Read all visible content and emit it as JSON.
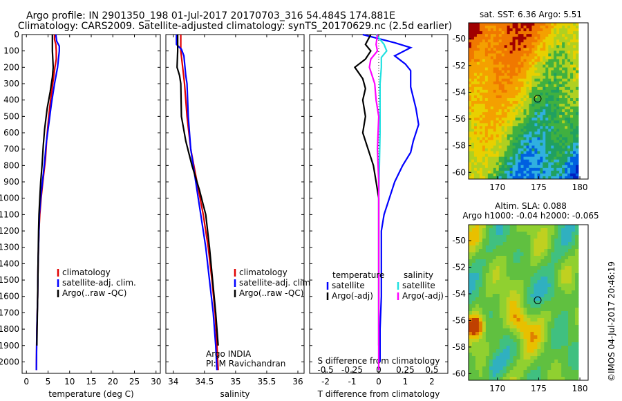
{
  "title_line1": "Argo profile: IN 2901350_198 01-Jul-2017 20170703_316 54.484S 174.881E",
  "title_line2": "Climatology: CARS2009. Satellite-adjusted climatology: synTS_20170629.nc (2.5d earlier)",
  "watermark": "©IMOS 04-Jul-2017 20:46:19",
  "colors": {
    "red": "#e00000",
    "blue": "#0000ff",
    "black": "#000000",
    "cyan": "#20e0e0",
    "magenta": "#ff00ff"
  },
  "chart_data": [
    {
      "type": "line",
      "xlabel": "temperature (deg C)",
      "ylabel": "",
      "xlim": [
        -1,
        31
      ],
      "ylim": [
        2070,
        0
      ],
      "xticks": [
        "0",
        "5",
        "10",
        "15",
        "20",
        "25",
        "30"
      ],
      "yticks": [
        "0",
        "100",
        "200",
        "300",
        "400",
        "500",
        "600",
        "700",
        "800",
        "900",
        "1000",
        "1100",
        "1200",
        "1300",
        "1400",
        "1500",
        "1600",
        "1700",
        "1800",
        "1900",
        "2000"
      ],
      "legend": [
        "climatology",
        "satellite-adj. clim.",
        "Argo(..raw -QC)"
      ],
      "legend_position": "lower-right",
      "series": [
        {
          "name": "climatology",
          "color": "red",
          "points": [
            [
              6.5,
              0
            ],
            [
              6.5,
              30
            ],
            [
              6.8,
              60
            ],
            [
              6.9,
              100
            ],
            [
              6.9,
              150
            ],
            [
              6.6,
              200
            ],
            [
              6.3,
              260
            ],
            [
              5.9,
              340
            ],
            [
              5.5,
              420
            ],
            [
              5.1,
              520
            ],
            [
              4.7,
              640
            ],
            [
              4.4,
              760
            ],
            [
              3.8,
              900
            ],
            [
              3.4,
              1000
            ],
            [
              3.1,
              1100
            ],
            [
              2.9,
              1200
            ],
            [
              2.7,
              1400
            ],
            [
              2.6,
              1600
            ],
            [
              2.4,
              1800
            ],
            [
              2.3,
              2050
            ]
          ]
        },
        {
          "name": "satellite-adj. clim.",
          "color": "blue",
          "points": [
            [
              6.8,
              0
            ],
            [
              7.0,
              40
            ],
            [
              7.6,
              70
            ],
            [
              7.6,
              100
            ],
            [
              7.2,
              200
            ],
            [
              6.5,
              300
            ],
            [
              5.8,
              420
            ],
            [
              5.2,
              540
            ],
            [
              4.6,
              660
            ],
            [
              4.2,
              780
            ],
            [
              3.7,
              900
            ],
            [
              3.3,
              1000
            ],
            [
              3.0,
              1100
            ],
            [
              2.9,
              1200
            ],
            [
              2.7,
              1400
            ],
            [
              2.6,
              1600
            ],
            [
              2.4,
              1800
            ],
            [
              2.3,
              2050
            ]
          ]
        },
        {
          "name": "Argo(..raw -QC)",
          "color": "black",
          "points": [
            [
              6.0,
              0
            ],
            [
              6.0,
              100
            ],
            [
              6.2,
              200
            ],
            [
              6.0,
              260
            ],
            [
              5.5,
              350
            ],
            [
              4.8,
              450
            ],
            [
              4.2,
              580
            ],
            [
              3.9,
              680
            ],
            [
              3.6,
              800
            ],
            [
              3.3,
              900
            ],
            [
              3.1,
              1000
            ],
            [
              2.9,
              1100
            ],
            [
              2.8,
              1200
            ],
            [
              2.7,
              1400
            ],
            [
              2.6,
              1600
            ],
            [
              2.5,
              1750
            ],
            [
              2.4,
              1900
            ]
          ]
        }
      ]
    },
    {
      "type": "line",
      "xlabel": "salinity",
      "ylabel": "",
      "xlim": [
        33.88,
        36.1
      ],
      "ylim": [
        2070,
        0
      ],
      "xticks": [
        "34",
        "34.5",
        "35",
        "35.5",
        "36"
      ],
      "legend": [
        "climatology",
        "satellite-adj. clim.",
        "Argo(..raw -QC)"
      ],
      "legend_position": "lower-right",
      "series": [
        {
          "name": "climatology",
          "color": "red",
          "points": [
            [
              34.12,
              0
            ],
            [
              34.12,
              100
            ],
            [
              34.15,
              200
            ],
            [
              34.18,
              300
            ],
            [
              34.22,
              500
            ],
            [
              34.28,
              700
            ],
            [
              34.38,
              900
            ],
            [
              34.48,
              1100
            ],
            [
              34.56,
              1300
            ],
            [
              34.62,
              1500
            ],
            [
              34.67,
              1700
            ],
            [
              34.7,
              1900
            ],
            [
              34.72,
              2050
            ]
          ]
        },
        {
          "name": "satellite-adj. clim.",
          "color": "blue",
          "points": [
            [
              34.05,
              0
            ],
            [
              34.05,
              60
            ],
            [
              34.13,
              90
            ],
            [
              34.17,
              130
            ],
            [
              34.2,
              250
            ],
            [
              34.22,
              300
            ],
            [
              34.24,
              500
            ],
            [
              34.28,
              700
            ],
            [
              34.36,
              900
            ],
            [
              34.44,
              1100
            ],
            [
              34.52,
              1300
            ],
            [
              34.58,
              1500
            ],
            [
              34.64,
              1700
            ],
            [
              34.68,
              1900
            ],
            [
              34.7,
              2050
            ]
          ]
        },
        {
          "name": "Argo(..raw -QC)",
          "color": "black",
          "points": [
            [
              34.07,
              0
            ],
            [
              34.07,
              100
            ],
            [
              34.06,
              200
            ],
            [
              34.1,
              250
            ],
            [
              34.12,
              300
            ],
            [
              34.13,
              500
            ],
            [
              34.2,
              650
            ],
            [
              34.3,
              800
            ],
            [
              34.42,
              950
            ],
            [
              34.52,
              1100
            ],
            [
              34.58,
              1300
            ],
            [
              34.63,
              1500
            ],
            [
              34.68,
              1700
            ],
            [
              34.72,
              1900
            ]
          ]
        }
      ],
      "annotation": [
        "Argo INDIA",
        "PI: M Ravichandran"
      ]
    },
    {
      "type": "line",
      "xlabel": "T difference from climatology",
      "ylabel": "",
      "xlim": [
        -2.6,
        2.6
      ],
      "ylim": [
        2070,
        0
      ],
      "xticks": [
        "-2",
        "-1",
        "0",
        "1",
        "2"
      ],
      "xticks_top": [
        "-0.5",
        "-0.25",
        "0",
        "0.25",
        "0.5"
      ],
      "xlabel_top": "S difference from climatology",
      "legend_left_title": "temperature",
      "legend_right_title": "salinity",
      "legend": [
        "satellite",
        "Argo(-adj)",
        "satellite",
        "Argo(-adj)"
      ],
      "series": [
        {
          "name": "T satellite",
          "color": "blue",
          "points": [
            [
              -0.6,
              0
            ],
            [
              0.6,
              50
            ],
            [
              1.2,
              80
            ],
            [
              0.6,
              130
            ],
            [
              1.0,
              180
            ],
            [
              1.2,
              220
            ],
            [
              1.2,
              320
            ],
            [
              1.4,
              450
            ],
            [
              1.5,
              550
            ],
            [
              1.3,
              650
            ],
            [
              1.2,
              720
            ],
            [
              0.9,
              800
            ],
            [
              0.6,
              900
            ],
            [
              0.4,
              1000
            ],
            [
              0.2,
              1100
            ],
            [
              0.1,
              1200
            ],
            [
              0.1,
              1400
            ],
            [
              0.1,
              1600
            ],
            [
              0.05,
              1800
            ],
            [
              0.05,
              2000
            ]
          ]
        },
        {
          "name": "T Argo(-adj)",
          "color": "black",
          "points": [
            [
              -0.3,
              0
            ],
            [
              -0.5,
              60
            ],
            [
              -0.3,
              100
            ],
            [
              -0.5,
              150
            ],
            [
              -0.9,
              200
            ],
            [
              -0.6,
              270
            ],
            [
              -0.5,
              330
            ],
            [
              -0.6,
              400
            ],
            [
              -0.5,
              500
            ],
            [
              -0.6,
              600
            ],
            [
              -0.4,
              700
            ],
            [
              -0.2,
              800
            ],
            [
              -0.1,
              900
            ],
            [
              0.0,
              1000
            ],
            [
              0.0,
              1200
            ],
            [
              0.0,
              1500
            ],
            [
              0.0,
              1900
            ]
          ]
        },
        {
          "name": "S satellite",
          "color": "cyan",
          "points": [
            [
              -0.1,
              0
            ],
            [
              0.2,
              60
            ],
            [
              0.3,
              100
            ],
            [
              0.1,
              140
            ],
            [
              0.1,
              200
            ],
            [
              0.05,
              300
            ],
            [
              0.05,
              600
            ],
            [
              0.0,
              1000
            ],
            [
              0.0,
              1500
            ],
            [
              0.0,
              2050
            ]
          ]
        },
        {
          "name": "S Argo(-adj)",
          "color": "magenta",
          "points": [
            [
              -0.05,
              0
            ],
            [
              -0.1,
              60
            ],
            [
              -0.05,
              100
            ],
            [
              -0.3,
              150
            ],
            [
              -0.35,
              200
            ],
            [
              -0.15,
              300
            ],
            [
              -0.1,
              400
            ],
            [
              0.0,
              500
            ],
            [
              -0.05,
              700
            ],
            [
              0.0,
              900
            ],
            [
              0.0,
              1200
            ],
            [
              0.0,
              2050
            ]
          ]
        }
      ]
    },
    {
      "type": "heatmap",
      "title": "sat. SST: 6.36 Argo: 5.51",
      "xlim": [
        166.5,
        181
      ],
      "ylim": [
        -60.5,
        -48.8
      ],
      "xticks": [
        "170",
        "175",
        "180"
      ],
      "yticks": [
        "-50",
        "-52",
        "-54",
        "-56",
        "-58",
        "-60"
      ],
      "marker": {
        "lon": 174.881,
        "lat": -54.484
      }
    },
    {
      "type": "heatmap",
      "title_line1": "Altim. SLA: 0.088",
      "title_line2": "Argo h1000: -0.04 h2000: -0.065",
      "xlim": [
        166.5,
        181
      ],
      "ylim": [
        -60.5,
        -48.8
      ],
      "xticks": [
        "170",
        "175",
        "180"
      ],
      "yticks": [
        "-50",
        "-52",
        "-54",
        "-56",
        "-58",
        "-60"
      ],
      "marker": {
        "lon": 174.881,
        "lat": -54.484
      }
    }
  ]
}
